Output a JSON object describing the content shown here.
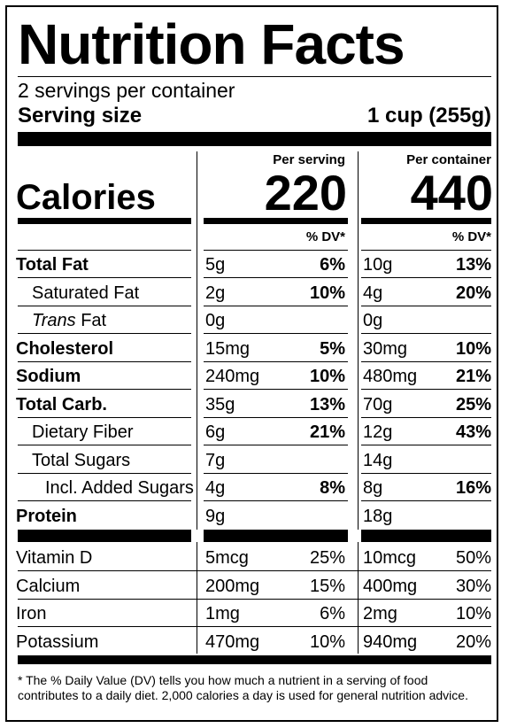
{
  "title": "Nutrition Facts",
  "servings_per_container": "2 servings per container",
  "serving_size_label": "Serving size",
  "serving_size_value": "1 cup (255g)",
  "columns": {
    "per_serving": "Per serving",
    "per_container": "Per container",
    "dv_header": "% DV*"
  },
  "calories": {
    "label": "Calories",
    "per_serving": "220",
    "per_container": "440"
  },
  "nutrients": [
    {
      "name": "Total Fat",
      "bold": true,
      "indent": 0,
      "serving_amount": "5g",
      "serving_dv": "6%",
      "container_amount": "10g",
      "container_dv": "13%"
    },
    {
      "name": "Saturated Fat",
      "bold": false,
      "indent": 1,
      "serving_amount": "2g",
      "serving_dv": "10%",
      "container_amount": "4g",
      "container_dv": "20%"
    },
    {
      "name": "Trans Fat",
      "name_italic": "Trans",
      "name_rest": " Fat",
      "bold": false,
      "indent": 1,
      "serving_amount": "0g",
      "serving_dv": "",
      "container_amount": "0g",
      "container_dv": ""
    },
    {
      "name": "Cholesterol",
      "bold": true,
      "indent": 0,
      "serving_amount": "15mg",
      "serving_dv": "5%",
      "container_amount": "30mg",
      "container_dv": "10%"
    },
    {
      "name": "Sodium",
      "bold": true,
      "indent": 0,
      "serving_amount": "240mg",
      "serving_dv": "10%",
      "container_amount": "480mg",
      "container_dv": "21%"
    },
    {
      "name": "Total Carb.",
      "bold": true,
      "indent": 0,
      "serving_amount": "35g",
      "serving_dv": "13%",
      "container_amount": "70g",
      "container_dv": "25%"
    },
    {
      "name": "Dietary Fiber",
      "bold": false,
      "indent": 1,
      "serving_amount": "6g",
      "serving_dv": "21%",
      "container_amount": "12g",
      "container_dv": "43%"
    },
    {
      "name": "Total Sugars",
      "bold": false,
      "indent": 1,
      "serving_amount": "7g",
      "serving_dv": "",
      "container_amount": "14g",
      "container_dv": ""
    },
    {
      "name": "Incl. Added Sugars",
      "bold": false,
      "indent": 2,
      "serving_amount": "4g",
      "serving_dv": "8%",
      "container_amount": "8g",
      "container_dv": "16%"
    },
    {
      "name": "Protein",
      "bold": true,
      "indent": 0,
      "serving_amount": "9g",
      "serving_dv": "",
      "container_amount": "18g",
      "container_dv": ""
    }
  ],
  "vitamins": [
    {
      "name": "Vitamin D",
      "serving_amount": "5mcg",
      "serving_dv": "25%",
      "container_amount": "10mcg",
      "container_dv": "50%"
    },
    {
      "name": "Calcium",
      "serving_amount": "200mg",
      "serving_dv": "15%",
      "container_amount": "400mg",
      "container_dv": "30%"
    },
    {
      "name": "Iron",
      "serving_amount": "1mg",
      "serving_dv": "6%",
      "container_amount": "2mg",
      "container_dv": "10%"
    },
    {
      "name": "Potassium",
      "serving_amount": "470mg",
      "serving_dv": "10%",
      "container_amount": "940mg",
      "container_dv": "20%"
    }
  ],
  "footnote": "* The % Daily Value (DV) tells you how much a nutrient in a serving of food contributes to a daily diet. 2,000 calories a day is used for general nutrition advice."
}
